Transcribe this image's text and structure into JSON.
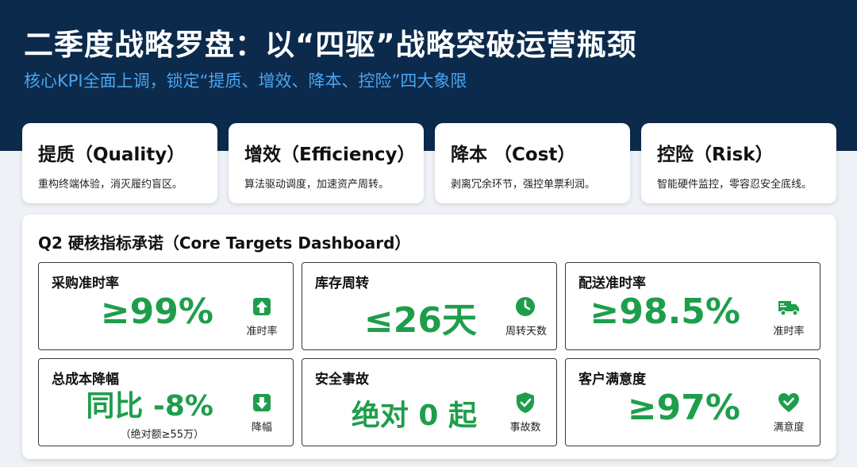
{
  "header": {
    "title": "二季度战略罗盘：以“四驱”战略突破运营瓶颈",
    "subtitle": "核心KPI全面上调，锁定“提质、增效、降本、控险”四大象限"
  },
  "quadrants": [
    {
      "title": "提质（Quality）",
      "desc": "重构终端体验，消灭履约盲区。"
    },
    {
      "title": "增效（Efficiency）",
      "desc": "算法驱动调度，加速资产周转。"
    },
    {
      "title": "降本 （Cost）",
      "desc": "剥离冗余环节，强控单票利润。"
    },
    {
      "title": "控险（Risk）",
      "desc": "智能硬件监控，零容忍安全底线。"
    }
  ],
  "dashboard": {
    "title": "Q2 硬核指标承诺（Core Targets Dashboard）",
    "kpis": [
      {
        "label": "采购准时率",
        "value": "≥99%",
        "icon": "arrow-up-icon",
        "icon_label": "准时率"
      },
      {
        "label": "库存周转",
        "value": "≤26天",
        "icon": "clock-icon",
        "icon_label": "周转天数"
      },
      {
        "label": "配送准时率",
        "value": "≥98.5%",
        "icon": "truck-icon",
        "icon_label": "准时率"
      },
      {
        "label": "总成本降幅",
        "value": "同比 -8%",
        "note": "（绝对额≥55万）",
        "icon": "arrow-down-icon",
        "icon_label": "降幅"
      },
      {
        "label": "安全事故",
        "value": "绝对 0 起",
        "icon": "shield-check-icon",
        "icon_label": "事故数"
      },
      {
        "label": "客户满意度",
        "value": "≥97%",
        "icon": "heart-check-icon",
        "icon_label": "满意度"
      }
    ]
  },
  "colors": {
    "header_bg": "#0c2a4c",
    "subtitle": "#4aa5f0",
    "accent_green": "#1e9e4b"
  }
}
